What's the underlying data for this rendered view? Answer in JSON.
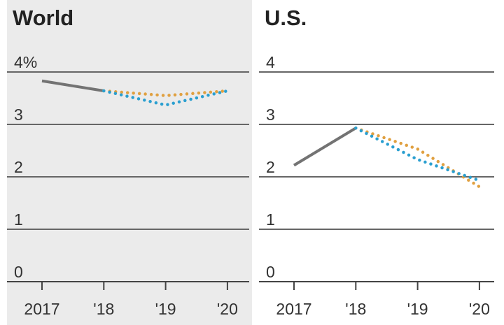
{
  "chart_data": [
    {
      "type": "line",
      "title": "World",
      "categories": [
        "2017",
        "'18",
        "'19",
        "'20"
      ],
      "series": [
        {
          "color": "#737373",
          "style": "solid",
          "values": [
            3.83,
            3.64,
            null,
            null
          ]
        },
        {
          "color": "#e0a040",
          "style": "dotted",
          "values": [
            null,
            3.64,
            3.55,
            3.64
          ]
        },
        {
          "color": "#2a9fd0",
          "style": "dotted",
          "values": [
            null,
            3.64,
            3.37,
            3.64
          ]
        }
      ],
      "ylim": [
        0,
        4
      ],
      "yticks": [
        0,
        1,
        2,
        3,
        {
          "value": 4,
          "label": "4%"
        }
      ],
      "grid": true,
      "background": "#ebebeb"
    },
    {
      "type": "line",
      "title": "U.S.",
      "categories": [
        "2017",
        "'18",
        "'19",
        "'20"
      ],
      "series": [
        {
          "color": "#737373",
          "style": "solid",
          "values": [
            2.22,
            2.93,
            null,
            null
          ]
        },
        {
          "color": "#e0a040",
          "style": "dotted",
          "values": [
            null,
            2.93,
            2.53,
            1.81
          ]
        },
        {
          "color": "#2a9fd0",
          "style": "dotted",
          "values": [
            null,
            2.93,
            2.33,
            1.93
          ]
        }
      ],
      "ylim": [
        0,
        4
      ],
      "yticks": [
        0,
        1,
        2,
        3,
        4
      ],
      "grid": true,
      "background": "#ffffff"
    }
  ]
}
